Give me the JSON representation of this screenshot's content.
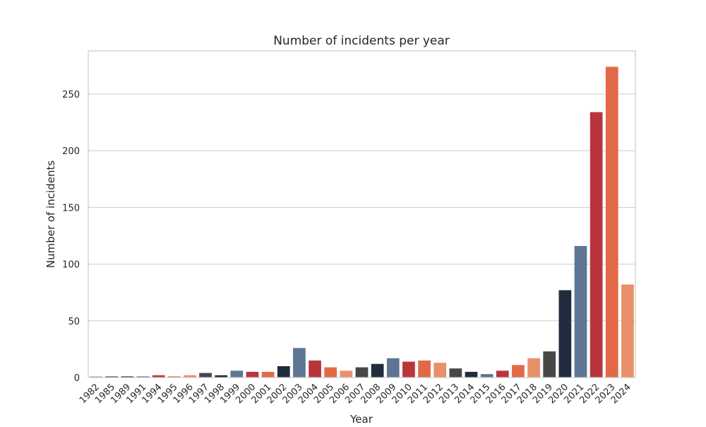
{
  "chart_data": {
    "type": "bar",
    "title": "Number of incidents per year",
    "xlabel": "Year",
    "ylabel": "Number of incidents",
    "ylim": [
      0,
      288
    ],
    "yticks": [
      0,
      50,
      100,
      150,
      200,
      250
    ],
    "grid": true,
    "legend": "none",
    "categories": [
      "1982",
      "1985",
      "1989",
      "1991",
      "1994",
      "1995",
      "1996",
      "1997",
      "1998",
      "1999",
      "2000",
      "2001",
      "2002",
      "2003",
      "2004",
      "2005",
      "2006",
      "2007",
      "2008",
      "2009",
      "2010",
      "2011",
      "2012",
      "2013",
      "2014",
      "2015",
      "2016",
      "2017",
      "2018",
      "2019",
      "2020",
      "2021",
      "2022",
      "2023",
      "2024"
    ],
    "values": [
      1,
      1,
      1,
      1,
      2,
      1,
      2,
      4,
      2,
      6,
      5,
      5,
      10,
      26,
      15,
      9,
      6,
      9,
      12,
      17,
      14,
      15,
      13,
      8,
      5,
      3,
      6,
      11,
      17,
      23,
      77,
      116,
      234,
      274,
      82
    ],
    "palette": [
      "#e8906a",
      "#474747",
      "#1f2d3e",
      "#5c7694",
      "#b8363b",
      "#e26948",
      "#e8906a",
      "#474747",
      "#1f2d3e",
      "#5c7694",
      "#b8363b",
      "#e26948",
      "#1f2d3e",
      "#5c7694",
      "#b8363b",
      "#e26948",
      "#e8906a",
      "#474747",
      "#1f2d3e",
      "#5c7694",
      "#b8363b",
      "#e26948",
      "#e8906a",
      "#474747",
      "#1f2d3e",
      "#5c7694",
      "#b8363b",
      "#e26948",
      "#e8906a",
      "#474747",
      "#1f2d3e",
      "#5c7694",
      "#b8363b",
      "#e26948",
      "#e8906a"
    ]
  }
}
